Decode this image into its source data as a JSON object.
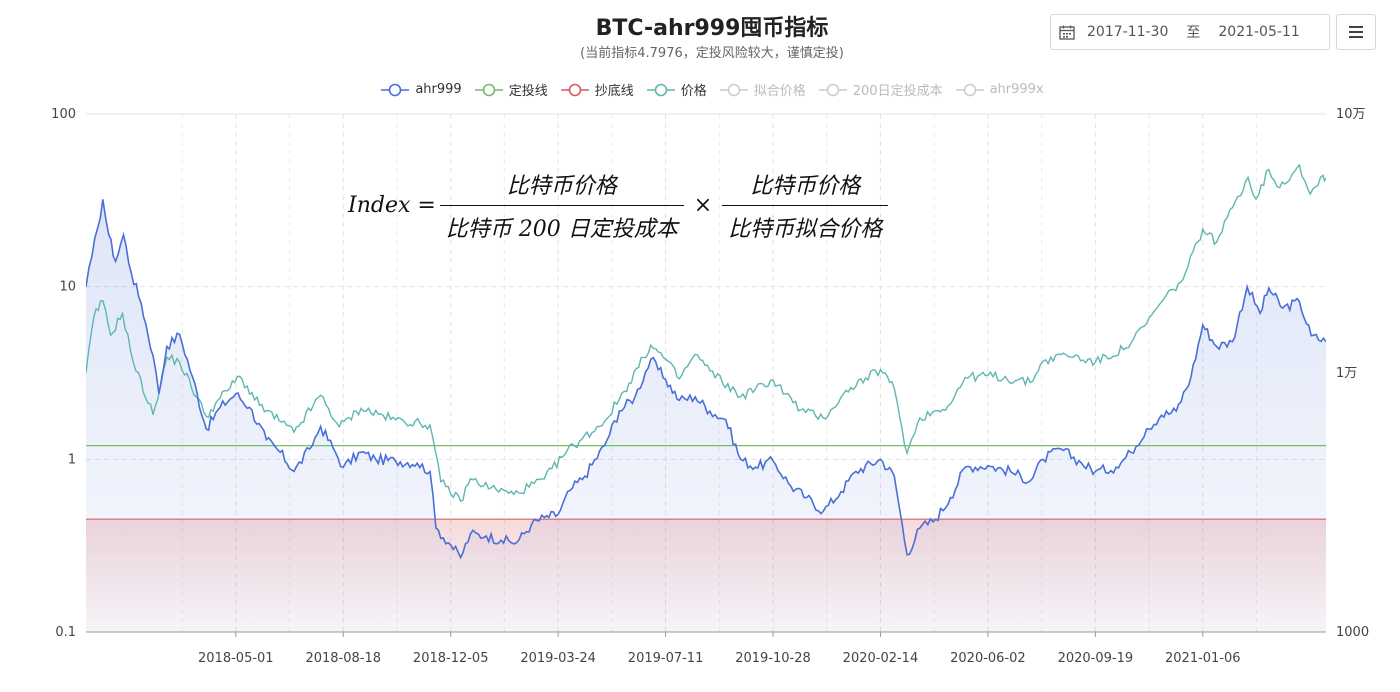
{
  "header": {
    "title": "BTC-ahr999囤币指标",
    "subtitle": "(当前指标4.7976，定投风险较大，谨慎定投)"
  },
  "date_range": {
    "start": "2017-11-30",
    "separator": "至",
    "end": "2021-05-11"
  },
  "icons": {
    "calendar": "calendar-icon",
    "menu": "menu-icon"
  },
  "formula": {
    "lhs": "Index =",
    "frac1_num": "比特币价格",
    "frac1_den": "比特币 200 日定投成本",
    "times": "×",
    "frac2_num": "比特币价格",
    "frac2_den": "比特币拟合价格"
  },
  "colors": {
    "ahr999": "#4a6fd6",
    "invest_line": "#77bb66",
    "bottom_line": "#d9595f",
    "price": "#5fb6b0",
    "inactive": "#cccccc"
  },
  "chart_data": {
    "type": "line",
    "y_scale": "log",
    "left_axis": {
      "min": 0.1,
      "max": 100,
      "ticks": [
        "100",
        "10",
        "1",
        "0.1"
      ]
    },
    "right_axis": {
      "min": 1000,
      "max": 100000,
      "ticks": [
        "10万",
        "1万",
        "1000"
      ]
    },
    "x_range": [
      "2017-11-30",
      "2021-05-11"
    ],
    "x_ticks": [
      "2018-05-01",
      "2018-08-18",
      "2018-12-05",
      "2019-03-24",
      "2019-07-11",
      "2019-10-28",
      "2020-02-14",
      "2020-06-02",
      "2020-09-19",
      "2021-01-06"
    ],
    "legend": [
      {
        "name": "ahr999",
        "active": true
      },
      {
        "name": "定投线",
        "active": true
      },
      {
        "name": "抄底线",
        "active": true
      },
      {
        "name": "价格",
        "active": true
      },
      {
        "name": "拟合价格",
        "active": false
      },
      {
        "name": "200日定投成本",
        "active": false
      },
      {
        "name": "ahr999x",
        "active": false
      }
    ],
    "invest_line_value": 1.2,
    "bottom_line_value": 0.45,
    "series": [
      {
        "name": "ahr999",
        "axis": "left",
        "points": [
          [
            "2017-11-30",
            10
          ],
          [
            "2017-12-06",
            15
          ],
          [
            "2017-12-12",
            22
          ],
          [
            "2017-12-17",
            32
          ],
          [
            "2017-12-23",
            20
          ],
          [
            "2017-12-30",
            14
          ],
          [
            "2018-01-07",
            20
          ],
          [
            "2018-01-15",
            12
          ],
          [
            "2018-01-25",
            8
          ],
          [
            "2018-02-06",
            4
          ],
          [
            "2018-02-12",
            2.4
          ],
          [
            "2018-02-20",
            4.5
          ],
          [
            "2018-03-05",
            5.3
          ],
          [
            "2018-03-18",
            3.0
          ],
          [
            "2018-04-01",
            1.5
          ],
          [
            "2018-04-15",
            2.0
          ],
          [
            "2018-05-01",
            2.4
          ],
          [
            "2018-05-15",
            2.0
          ],
          [
            "2018-06-01",
            1.3
          ],
          [
            "2018-06-15",
            1.1
          ],
          [
            "2018-06-29",
            0.85
          ],
          [
            "2018-07-15",
            1.15
          ],
          [
            "2018-07-26",
            1.55
          ],
          [
            "2018-08-10",
            1.1
          ],
          [
            "2018-08-18",
            0.9
          ],
          [
            "2018-09-05",
            1.1
          ],
          [
            "2018-09-20",
            1.0
          ],
          [
            "2018-10-10",
            0.98
          ],
          [
            "2018-11-01",
            0.95
          ],
          [
            "2018-11-14",
            0.85
          ],
          [
            "2018-11-20",
            0.4
          ],
          [
            "2018-12-05",
            0.32
          ],
          [
            "2018-12-15",
            0.27
          ],
          [
            "2018-12-25",
            0.37
          ],
          [
            "2019-01-10",
            0.36
          ],
          [
            "2019-01-25",
            0.34
          ],
          [
            "2019-02-10",
            0.33
          ],
          [
            "2019-02-25",
            0.42
          ],
          [
            "2019-03-10",
            0.46
          ],
          [
            "2019-03-24",
            0.48
          ],
          [
            "2019-04-05",
            0.66
          ],
          [
            "2019-04-20",
            0.8
          ],
          [
            "2019-05-10",
            1.2
          ],
          [
            "2019-05-25",
            1.9
          ],
          [
            "2019-06-10",
            2.3
          ],
          [
            "2019-06-26",
            3.8
          ],
          [
            "2019-07-11",
            2.9
          ],
          [
            "2019-07-25",
            2.2
          ],
          [
            "2019-08-10",
            2.3
          ],
          [
            "2019-08-25",
            1.9
          ],
          [
            "2019-09-10",
            1.7
          ],
          [
            "2019-09-25",
            1.0
          ],
          [
            "2019-10-10",
            0.9
          ],
          [
            "2019-10-28",
            0.98
          ],
          [
            "2019-11-15",
            0.7
          ],
          [
            "2019-12-01",
            0.6
          ],
          [
            "2019-12-18",
            0.5
          ],
          [
            "2020-01-05",
            0.65
          ],
          [
            "2020-01-20",
            0.85
          ],
          [
            "2020-02-14",
            1.0
          ],
          [
            "2020-02-28",
            0.8
          ],
          [
            "2020-03-12",
            0.28
          ],
          [
            "2020-03-25",
            0.4
          ],
          [
            "2020-04-10",
            0.45
          ],
          [
            "2020-04-25",
            0.6
          ],
          [
            "2020-05-10",
            0.9
          ],
          [
            "2020-06-02",
            0.92
          ],
          [
            "2020-06-25",
            0.85
          ],
          [
            "2020-07-15",
            0.75
          ],
          [
            "2020-07-28",
            1.0
          ],
          [
            "2020-08-15",
            1.15
          ],
          [
            "2020-09-05",
            0.95
          ],
          [
            "2020-09-19",
            0.85
          ],
          [
            "2020-10-10",
            0.9
          ],
          [
            "2020-10-25",
            1.1
          ],
          [
            "2020-11-10",
            1.5
          ],
          [
            "2020-11-25",
            1.8
          ],
          [
            "2020-12-10",
            1.9
          ],
          [
            "2020-12-25",
            3.0
          ],
          [
            "2021-01-06",
            6.0
          ],
          [
            "2021-01-20",
            4.5
          ],
          [
            "2021-02-05",
            4.8
          ],
          [
            "2021-02-20",
            10
          ],
          [
            "2021-03-05",
            7
          ],
          [
            "2021-03-14",
            9.8
          ],
          [
            "2021-03-28",
            7.5
          ],
          [
            "2021-04-14",
            8.2
          ],
          [
            "2021-04-26",
            5.2
          ],
          [
            "2021-05-11",
            4.8
          ]
        ]
      },
      {
        "name": "价格",
        "axis": "right",
        "points": [
          [
            "2017-11-30",
            10000
          ],
          [
            "2017-12-08",
            16500
          ],
          [
            "2017-12-17",
            19000
          ],
          [
            "2017-12-25",
            14000
          ],
          [
            "2018-01-06",
            17000
          ],
          [
            "2018-01-17",
            11000
          ],
          [
            "2018-02-06",
            6900
          ],
          [
            "2018-02-20",
            11500
          ],
          [
            "2018-03-05",
            11000
          ],
          [
            "2018-04-01",
            6800
          ],
          [
            "2018-04-15",
            8000
          ],
          [
            "2018-05-05",
            9700
          ],
          [
            "2018-05-25",
            7500
          ],
          [
            "2018-06-29",
            5900
          ],
          [
            "2018-07-26",
            8200
          ],
          [
            "2018-08-14",
            6200
          ],
          [
            "2018-09-05",
            7300
          ],
          [
            "2018-10-10",
            6600
          ],
          [
            "2018-11-14",
            6300
          ],
          [
            "2018-11-25",
            3800
          ],
          [
            "2018-12-15",
            3200
          ],
          [
            "2018-12-25",
            3900
          ],
          [
            "2019-01-15",
            3600
          ],
          [
            "2019-02-07",
            3400
          ],
          [
            "2019-03-10",
            3900
          ],
          [
            "2019-04-02",
            5000
          ],
          [
            "2019-05-10",
            6500
          ],
          [
            "2019-05-30",
            8500
          ],
          [
            "2019-06-26",
            12800
          ],
          [
            "2019-07-11",
            11300
          ],
          [
            "2019-07-25",
            9500
          ],
          [
            "2019-08-10",
            11800
          ],
          [
            "2019-08-25",
            10200
          ],
          [
            "2019-09-25",
            8100
          ],
          [
            "2019-10-28",
            9400
          ],
          [
            "2019-11-25",
            7200
          ],
          [
            "2019-12-18",
            6700
          ],
          [
            "2020-01-15",
            8800
          ],
          [
            "2020-02-14",
            10300
          ],
          [
            "2020-02-28",
            8700
          ],
          [
            "2020-03-12",
            4900
          ],
          [
            "2020-03-25",
            6700
          ],
          [
            "2020-04-25",
            7600
          ],
          [
            "2020-05-10",
            9600
          ],
          [
            "2020-06-02",
            9800
          ],
          [
            "2020-07-15",
            9200
          ],
          [
            "2020-07-28",
            11100
          ],
          [
            "2020-08-20",
            11800
          ],
          [
            "2020-09-19",
            11000
          ],
          [
            "2020-10-20",
            12500
          ],
          [
            "2020-11-10",
            15500
          ],
          [
            "2020-11-25",
            18800
          ],
          [
            "2020-12-17",
            23000
          ],
          [
            "2021-01-06",
            36000
          ],
          [
            "2021-01-20",
            32000
          ],
          [
            "2021-02-08",
            46000
          ],
          [
            "2021-02-21",
            57000
          ],
          [
            "2021-03-01",
            47000
          ],
          [
            "2021-03-14",
            61000
          ],
          [
            "2021-03-25",
            52000
          ],
          [
            "2021-04-14",
            63500
          ],
          [
            "2021-04-25",
            49000
          ],
          [
            "2021-05-08",
            58000
          ],
          [
            "2021-05-11",
            56500
          ]
        ]
      }
    ]
  }
}
